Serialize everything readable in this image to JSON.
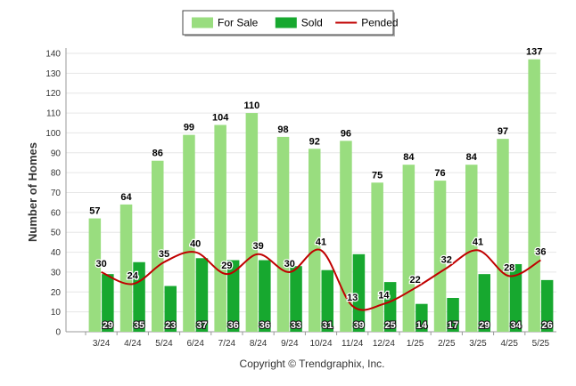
{
  "chart_data": {
    "type": "bar",
    "categories": [
      "3/24",
      "4/24",
      "5/24",
      "6/24",
      "7/24",
      "8/24",
      "9/24",
      "10/24",
      "11/24",
      "12/24",
      "1/25",
      "2/25",
      "3/25",
      "4/25",
      "5/25"
    ],
    "series": [
      {
        "name": "For Sale",
        "kind": "bar",
        "color": "#99dd7f",
        "values": [
          57,
          64,
          86,
          99,
          104,
          110,
          98,
          92,
          96,
          75,
          84,
          76,
          84,
          97,
          137
        ]
      },
      {
        "name": "Sold",
        "kind": "bar",
        "color": "#17a82f",
        "values": [
          29,
          35,
          23,
          37,
          36,
          36,
          33,
          31,
          39,
          25,
          14,
          17,
          29,
          34,
          26
        ]
      },
      {
        "name": "Pended",
        "kind": "line",
        "color": "#c00000",
        "values": [
          30,
          24,
          35,
          40,
          29,
          39,
          30,
          41,
          13,
          14,
          22,
          32,
          41,
          28,
          36
        ]
      }
    ],
    "ylabel": "Number of Homes",
    "xlabel": "",
    "ylim": [
      0,
      140
    ],
    "yticks": [
      0,
      10,
      20,
      30,
      40,
      50,
      60,
      70,
      80,
      90,
      100,
      110,
      120,
      130,
      140
    ],
    "grid": true,
    "legend_position": "top-center"
  },
  "footer": {
    "copyright": "Copyright © Trendgraphix, Inc."
  }
}
